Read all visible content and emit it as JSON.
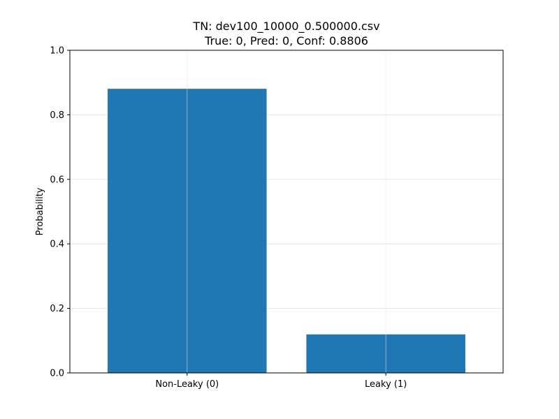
{
  "chart_data": {
    "type": "bar",
    "title_lines": [
      "TN: dev100_10000_0.500000.csv",
      "True: 0, Pred: 0, Conf: 0.8806"
    ],
    "categories": [
      "Non-Leaky (0)",
      "Leaky (1)"
    ],
    "values": [
      0.8806,
      0.1194
    ],
    "xlabel": "",
    "ylabel": "Probability",
    "ylim": [
      0,
      1.0
    ],
    "yticks": [
      0.0,
      0.2,
      0.4,
      0.6,
      0.8,
      1.0
    ],
    "ytick_labels": [
      "0.0",
      "0.2",
      "0.4",
      "0.6",
      "0.8",
      "1.0"
    ],
    "grid": true,
    "bar_color": "#1f77b4",
    "grid_color": "#e6e6e6"
  }
}
